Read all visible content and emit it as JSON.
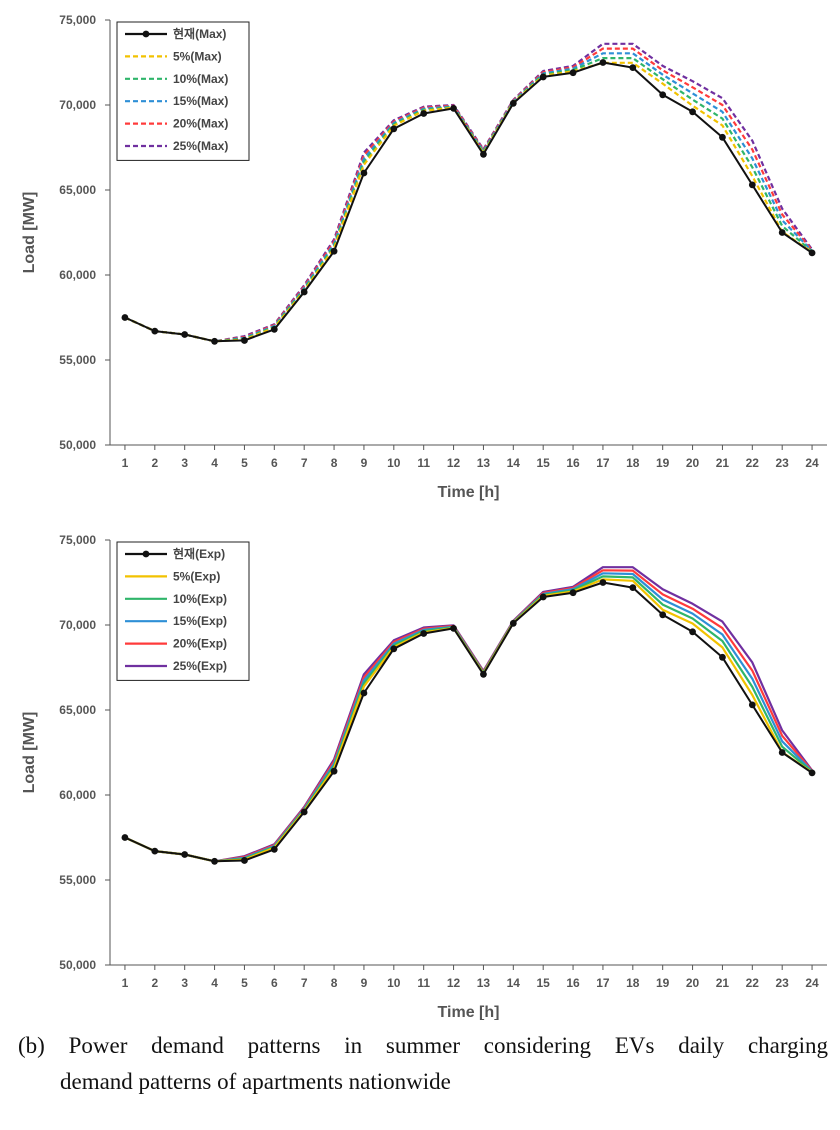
{
  "chart_data": [
    {
      "type": "line",
      "xlabel": "Time [h]",
      "ylabel": "Load [MW]",
      "ylim": [
        50000,
        75000
      ],
      "yticks": [
        50000,
        55000,
        60000,
        65000,
        70000,
        75000
      ],
      "ytick_labels": [
        "50,000",
        "55,000",
        "60,000",
        "65,000",
        "70,000",
        "75,000"
      ],
      "x": [
        1,
        2,
        3,
        4,
        5,
        6,
        7,
        8,
        9,
        10,
        11,
        12,
        13,
        14,
        15,
        16,
        17,
        18,
        19,
        20,
        21,
        22,
        23,
        24
      ],
      "line_style": "dashed",
      "legend_position": "top-left",
      "grid": false,
      "series": [
        {
          "name": "25%(Max)",
          "color": "#7030a0",
          "values": [
            57500,
            56700,
            56500,
            56100,
            56400,
            57100,
            59400,
            62100,
            67200,
            69100,
            69900,
            70000,
            67400,
            70300,
            72000,
            72300,
            73600,
            73600,
            72300,
            71400,
            70400,
            67900,
            63900,
            61500
          ]
        },
        {
          "name": "20%(Max)",
          "color": "#ff3b3b",
          "values": [
            57500,
            56700,
            56500,
            56100,
            56350,
            57050,
            59320,
            61970,
            67020,
            69020,
            69840,
            69960,
            67340,
            70260,
            71930,
            72220,
            73320,
            73320,
            72040,
            71040,
            70000,
            67380,
            63560,
            61460
          ]
        },
        {
          "name": "15%(Max)",
          "color": "#2e8fd6",
          "values": [
            57500,
            56700,
            56500,
            56100,
            56300,
            57000,
            59240,
            61840,
            66840,
            68940,
            69780,
            69920,
            67280,
            70220,
            71860,
            72140,
            73040,
            73040,
            71780,
            70680,
            69600,
            66860,
            63220,
            61420
          ]
        },
        {
          "name": "10%(Max)",
          "color": "#2fb56a",
          "values": [
            57500,
            56700,
            56500,
            56100,
            56250,
            56950,
            59160,
            61710,
            66660,
            68860,
            69720,
            69880,
            67220,
            70180,
            71790,
            72060,
            72760,
            72760,
            71520,
            70320,
            69200,
            66340,
            62880,
            61380
          ]
        },
        {
          "name": "5%(Max)",
          "color": "#f2c200",
          "values": [
            57500,
            56700,
            56500,
            56100,
            56200,
            56900,
            59080,
            61580,
            66480,
            68780,
            69660,
            69840,
            67160,
            70140,
            71720,
            71980,
            72480,
            72480,
            71260,
            69960,
            68800,
            65820,
            62540,
            61340
          ]
        },
        {
          "name": "현재(Max)",
          "color": "#111111",
          "values": [
            57500,
            56700,
            56500,
            56100,
            56150,
            56800,
            59000,
            61400,
            66000,
            68600,
            69500,
            69800,
            67100,
            70100,
            71650,
            71900,
            72500,
            72200,
            70600,
            69600,
            68100,
            65300,
            62500,
            61300
          ]
        }
      ],
      "legend": [
        "현재(Max)",
        "5%(Max)",
        "10%(Max)",
        "15%(Max)",
        "20%(Max)",
        "25%(Max)"
      ]
    },
    {
      "type": "line",
      "xlabel": "Time [h]",
      "ylabel": "Load [MW]",
      "ylim": [
        50000,
        75000
      ],
      "yticks": [
        50000,
        55000,
        60000,
        65000,
        70000,
        75000
      ],
      "ytick_labels": [
        "50,000",
        "55,000",
        "60,000",
        "65,000",
        "70,000",
        "75,000"
      ],
      "x": [
        1,
        2,
        3,
        4,
        5,
        6,
        7,
        8,
        9,
        10,
        11,
        12,
        13,
        14,
        15,
        16,
        17,
        18,
        19,
        20,
        21,
        22,
        23,
        24
      ],
      "line_style": "solid",
      "legend_position": "top-left",
      "grid": false,
      "series": [
        {
          "name": "25%(Exp)",
          "color": "#7030a0",
          "values": [
            57500,
            56700,
            56500,
            56100,
            56400,
            57100,
            59300,
            62100,
            67100,
            69100,
            69850,
            69980,
            67300,
            70250,
            71950,
            72250,
            73400,
            73400,
            72100,
            71250,
            70200,
            67800,
            63800,
            61450
          ]
        },
        {
          "name": "20%(Exp)",
          "color": "#ff3b3b",
          "values": [
            57500,
            56700,
            56500,
            56100,
            56350,
            57050,
            59240,
            61970,
            66920,
            69000,
            69780,
            69940,
            67260,
            70220,
            71890,
            72180,
            73220,
            73200,
            71800,
            70960,
            69820,
            67320,
            63480,
            61420
          ]
        },
        {
          "name": "15%(Exp)",
          "color": "#2e8fd6",
          "values": [
            57500,
            56700,
            56500,
            56100,
            56300,
            57000,
            59180,
            61840,
            66740,
            68900,
            69710,
            69900,
            67220,
            70190,
            71830,
            72110,
            73040,
            73000,
            71500,
            70670,
            69440,
            66840,
            63160,
            61390
          ]
        },
        {
          "name": "10%(Exp)",
          "color": "#2fb56a",
          "values": [
            57500,
            56700,
            56500,
            56100,
            56250,
            56950,
            59120,
            61710,
            66560,
            68800,
            69640,
            69860,
            67180,
            70160,
            71770,
            72040,
            72860,
            72800,
            71200,
            70380,
            69060,
            66360,
            62840,
            61360
          ]
        },
        {
          "name": "5%(Exp)",
          "color": "#f2c200",
          "values": [
            57500,
            56700,
            56500,
            56100,
            56200,
            56900,
            59060,
            61580,
            66380,
            68700,
            69570,
            69820,
            67140,
            70130,
            71710,
            71970,
            72680,
            72600,
            70900,
            70090,
            68680,
            65880,
            62520,
            61330
          ]
        },
        {
          "name": "현재(Exp)",
          "color": "#111111",
          "values": [
            57500,
            56700,
            56500,
            56100,
            56150,
            56800,
            59000,
            61400,
            66000,
            68600,
            69500,
            69800,
            67100,
            70100,
            71650,
            71900,
            72500,
            72200,
            70600,
            69600,
            68100,
            65300,
            62500,
            61300
          ]
        }
      ],
      "legend": [
        "현재(Exp)",
        "5%(Exp)",
        "10%(Exp)",
        "15%(Exp)",
        "20%(Exp)",
        "25%(Exp)"
      ]
    }
  ],
  "caption": {
    "line1": "(b) Power demand patterns in summer considering EVs daily charging",
    "line2": "demand patterns of apartments nationwide"
  }
}
